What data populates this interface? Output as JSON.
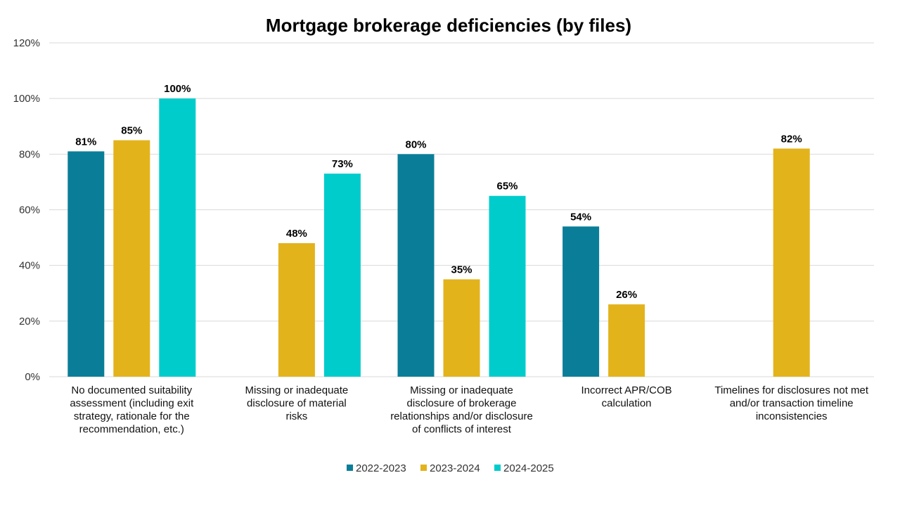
{
  "chart_data": {
    "type": "bar",
    "title": "Mortgage brokerage deficiencies (by files)",
    "xlabel": "",
    "ylabel": "",
    "ylim": [
      0,
      120
    ],
    "y_ticks": [
      "0%",
      "20%",
      "40%",
      "60%",
      "80%",
      "100%",
      "120%"
    ],
    "grid": true,
    "legend_position": "bottom",
    "categories": [
      "No documented suitability assessment (including exit strategy, rationale for the recommendation, etc.)",
      "Missing or inadequate disclosure of material risks",
      "Missing or inadequate disclosure of brokerage relationships and/or disclosure of conflicts of interest",
      "Incorrect APR/COB calculation",
      "Timelines for disclosures not met and/or transaction timeline inconsistencies"
    ],
    "category_lines": [
      [
        "No documented suitability",
        "assessment (including exit",
        "strategy, rationale for the",
        "recommendation, etc.)"
      ],
      [
        "Missing or inadequate",
        "disclosure of material",
        "risks"
      ],
      [
        "Missing or inadequate",
        "disclosure of brokerage",
        "relationships and/or disclosure",
        "of conflicts of interest"
      ],
      [
        "Incorrect APR/COB",
        "calculation"
      ],
      [
        "Timelines for disclosures not met",
        "and/or transaction timeline",
        "inconsistencies"
      ]
    ],
    "series": [
      {
        "name": "2022-2023",
        "color": "#0a7e98",
        "values": [
          81,
          null,
          80,
          54,
          null
        ],
        "labels": [
          "81%",
          null,
          "80%",
          "54%",
          null
        ]
      },
      {
        "name": "2023-2024",
        "color": "#e3b31c",
        "values": [
          85,
          48,
          35,
          26,
          82
        ],
        "labels": [
          "85%",
          "48%",
          "35%",
          "26%",
          "82%"
        ]
      },
      {
        "name": "2024-2025",
        "color": "#00cccc",
        "values": [
          100,
          73,
          65,
          null,
          null
        ],
        "labels": [
          "100%",
          "73%",
          "65%",
          null,
          null
        ]
      }
    ]
  }
}
